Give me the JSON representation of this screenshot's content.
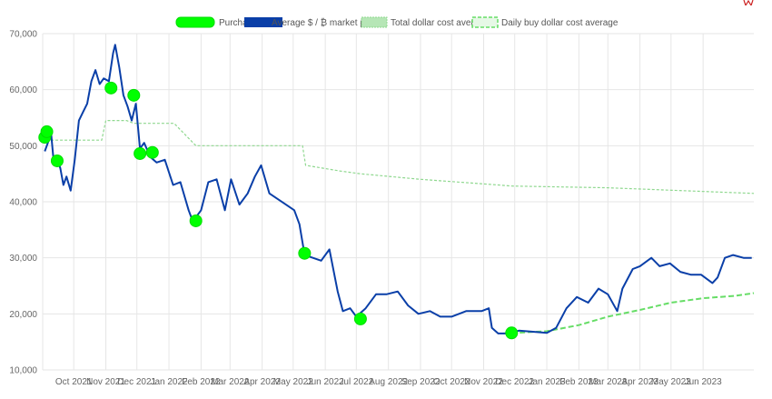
{
  "chart_data": {
    "type": "line",
    "title": "",
    "xlabel": "",
    "ylabel": "",
    "ylim": [
      10000,
      70000
    ],
    "xlim": [
      "2021-09-01",
      "2023-07-20"
    ],
    "yticks": [
      "10,000",
      "20,000",
      "30,000",
      "40,000",
      "50,000",
      "60,000",
      "70,000"
    ],
    "ytick_values": [
      10000,
      20000,
      30000,
      40000,
      50000,
      60000,
      70000
    ],
    "xticks": [
      "Oct 2021",
      "Nov 2021",
      "Dec 2021",
      "Jan 2022",
      "Feb 2022",
      "Mar 2022",
      "Apr 2022",
      "May 2022",
      "Jun 2022",
      "Jul 2022",
      "Aug 2022",
      "Sep 2022",
      "Oct 2022",
      "Nov 2022",
      "Dec 2022",
      "Jan 2023",
      "Feb 2023",
      "Mar 2023",
      "Apr 2023",
      "May 2023",
      "Jun 2023"
    ],
    "xtick_dates": [
      "2021-10-01",
      "2021-11-01",
      "2021-12-01",
      "2022-01-01",
      "2022-02-01",
      "2022-03-01",
      "2022-04-01",
      "2022-05-01",
      "2022-06-01",
      "2022-07-01",
      "2022-08-01",
      "2022-09-01",
      "2022-10-01",
      "2022-11-01",
      "2022-12-01",
      "2023-01-01",
      "2023-02-01",
      "2023-03-01",
      "2023-04-01",
      "2023-05-01",
      "2023-06-01"
    ],
    "grid": true,
    "legend_position": "top-center",
    "legend": [
      {
        "label": "Purchases",
        "style": "dot",
        "color": "#00ff00"
      },
      {
        "label": "Average $ / ₿ market price",
        "style": "solid",
        "color": "#0a3fa8"
      },
      {
        "label": "Total dollar cost average",
        "style": "dotted",
        "color": "#8fd88f"
      },
      {
        "label": "Daily buy dollar cost average",
        "style": "dashed",
        "color": "#66dd66"
      }
    ],
    "series": [
      {
        "name": "Average $ / ₿ market price",
        "color": "#0a3fa8",
        "x": [
          "2021-09-03",
          "2021-09-06",
          "2021-09-09",
          "2021-09-12",
          "2021-09-15",
          "2021-09-18",
          "2021-09-21",
          "2021-09-24",
          "2021-09-28",
          "2021-10-02",
          "2021-10-06",
          "2021-10-10",
          "2021-10-14",
          "2021-10-18",
          "2021-10-22",
          "2021-10-26",
          "2021-10-30",
          "2021-11-04",
          "2021-11-08",
          "2021-11-10",
          "2021-11-14",
          "2021-11-18",
          "2021-11-22",
          "2021-11-26",
          "2021-11-30",
          "2021-12-04",
          "2021-12-08",
          "2021-12-14",
          "2021-12-20",
          "2021-12-28",
          "2022-01-05",
          "2022-01-12",
          "2022-01-20",
          "2022-01-24",
          "2022-02-01",
          "2022-02-08",
          "2022-02-16",
          "2022-02-24",
          "2022-03-02",
          "2022-03-10",
          "2022-03-18",
          "2022-03-25",
          "2022-03-31",
          "2022-04-08",
          "2022-04-16",
          "2022-04-24",
          "2022-05-02",
          "2022-05-07",
          "2022-05-12",
          "2022-05-20",
          "2022-05-28",
          "2022-06-05",
          "2022-06-13",
          "2022-06-18",
          "2022-06-25",
          "2022-07-01",
          "2022-07-10",
          "2022-07-20",
          "2022-07-30",
          "2022-08-10",
          "2022-08-20",
          "2022-08-30",
          "2022-09-10",
          "2022-09-20",
          "2022-10-01",
          "2022-10-15",
          "2022-10-30",
          "2022-11-06",
          "2022-11-09",
          "2022-11-15",
          "2022-11-25",
          "2022-12-05",
          "2022-12-20",
          "2023-01-01",
          "2023-01-10",
          "2023-01-20",
          "2023-01-30",
          "2023-02-10",
          "2023-02-20",
          "2023-03-01",
          "2023-03-10",
          "2023-03-15",
          "2023-03-25",
          "2023-04-01",
          "2023-04-12",
          "2023-04-20",
          "2023-04-30",
          "2023-05-10",
          "2023-05-20",
          "2023-05-30",
          "2023-06-10",
          "2023-06-15",
          "2023-06-22",
          "2023-06-30",
          "2023-07-10",
          "2023-07-18"
        ],
        "y": [
          49000,
          50500,
          52500,
          46500,
          47500,
          46000,
          43000,
          44500,
          42000,
          47500,
          54500,
          56000,
          57500,
          61500,
          63500,
          61000,
          62000,
          61500,
          66500,
          68000,
          64000,
          59000,
          57000,
          54500,
          57500,
          49500,
          50500,
          48000,
          47000,
          47500,
          43000,
          43500,
          38500,
          36500,
          38500,
          43500,
          44000,
          38500,
          44000,
          39500,
          41500,
          44500,
          46500,
          41500,
          40500,
          39500,
          38500,
          36000,
          30500,
          30000,
          29500,
          31500,
          24000,
          20500,
          21000,
          19500,
          21000,
          23500,
          23500,
          24000,
          21500,
          20000,
          20500,
          19500,
          19500,
          20500,
          20500,
          21000,
          17500,
          16500,
          16500,
          17000,
          16800,
          16600,
          17500,
          21000,
          23000,
          22000,
          24500,
          23500,
          20500,
          24500,
          28000,
          28500,
          30000,
          28500,
          29000,
          27500,
          27000,
          27000,
          25500,
          26500,
          30000,
          30500,
          30000,
          30000
        ]
      },
      {
        "name": "Total dollar cost average",
        "color": "#8fd88f",
        "x": [
          "2021-09-01",
          "2021-09-05",
          "2021-09-25",
          "2021-10-28",
          "2021-11-01",
          "2021-11-21",
          "2021-11-28",
          "2022-01-06",
          "2022-01-27",
          "2022-05-10",
          "2022-05-13",
          "2022-06-15",
          "2022-07-05",
          "2022-09-01",
          "2022-11-15",
          "2022-11-28",
          "2023-03-01",
          "2023-07-20"
        ],
        "y": [
          51500,
          51000,
          51000,
          51000,
          54500,
          54500,
          54000,
          54000,
          50000,
          50000,
          46500,
          45500,
          45000,
          44000,
          43000,
          42800,
          42500,
          41500
        ]
      },
      {
        "name": "Daily buy dollar cost average",
        "color": "#66dd66",
        "x": [
          "2022-11-20",
          "2022-12-10",
          "2023-01-01",
          "2023-02-01",
          "2023-03-01",
          "2023-04-01",
          "2023-05-01",
          "2023-06-01",
          "2023-07-01",
          "2023-07-20"
        ],
        "y": [
          16500,
          16700,
          16900,
          18000,
          19500,
          20700,
          22000,
          22800,
          23200,
          23700
        ]
      },
      {
        "name": "Purchases",
        "color": "#00ff00",
        "x": [
          "2021-09-03",
          "2021-09-05",
          "2021-09-15",
          "2021-11-06",
          "2021-11-28",
          "2021-12-04",
          "2021-12-16",
          "2022-01-27",
          "2022-05-12",
          "2022-07-05",
          "2022-11-28"
        ],
        "y": [
          51500,
          52500,
          47300,
          60300,
          59000,
          48600,
          48800,
          36600,
          30800,
          19100,
          16600
        ]
      }
    ]
  },
  "colors": {
    "grid": "#e6e6e6",
    "axis_text": "#666666",
    "corner_mark": "#cc2222"
  }
}
